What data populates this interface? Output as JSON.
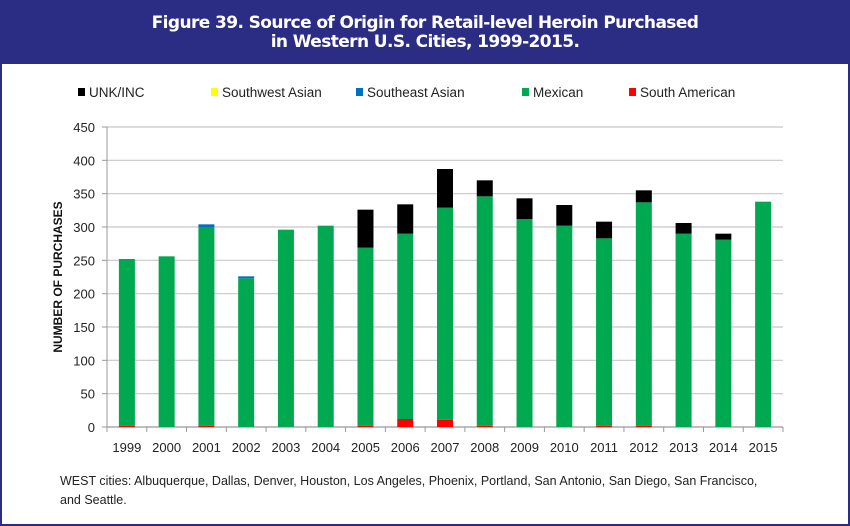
{
  "title_line1": "Figure 39. Source of Origin for Retail-level Heroin Purchased",
  "title_line2": "in Western U.S. Cities, 1999-2015.",
  "note": "WEST cities: Albuquerque, Dallas, Denver, Houston, Los Angeles, Phoenix, Portland, San Antonio, San Diego, San Francisco, and Seattle.",
  "chart_data": {
    "type": "bar",
    "stacked": true,
    "ylabel": "NUMBER OF PURCHASES",
    "xlabel": "",
    "ylim": [
      0,
      450
    ],
    "yticks": [
      0,
      50,
      100,
      150,
      200,
      250,
      300,
      350,
      400,
      450
    ],
    "grid": true,
    "legend_position": "top",
    "categories": [
      "1999",
      "2000",
      "2001",
      "2002",
      "2003",
      "2004",
      "2005",
      "2006",
      "2007",
      "2008",
      "2009",
      "2010",
      "2011",
      "2012",
      "2013",
      "2014",
      "2015"
    ],
    "series": [
      {
        "name": "South American",
        "color": "#ff0000",
        "values": [
          2,
          0,
          2,
          0,
          0,
          0,
          2,
          12,
          11,
          2,
          0,
          0,
          2,
          2,
          0,
          0,
          0
        ]
      },
      {
        "name": "Mexican",
        "color": "#00a94f",
        "values": [
          250,
          256,
          298,
          223,
          296,
          302,
          267,
          278,
          318,
          344,
          312,
          302,
          281,
          335,
          290,
          281,
          338
        ]
      },
      {
        "name": "Southeast Asian",
        "color": "#0070c0",
        "values": [
          0,
          0,
          4,
          3,
          0,
          0,
          0,
          0,
          0,
          0,
          0,
          0,
          0,
          0,
          0,
          0,
          0
        ]
      },
      {
        "name": "Southwest Asian",
        "color": "#ffff00",
        "values": [
          0,
          0,
          0,
          0,
          0,
          0,
          0,
          0,
          0,
          0,
          0,
          0,
          0,
          0,
          0,
          0,
          0
        ]
      },
      {
        "name": "UNK/INC",
        "color": "#000000",
        "values": [
          0,
          0,
          0,
          0,
          0,
          0,
          57,
          44,
          58,
          24,
          31,
          31,
          25,
          18,
          16,
          9,
          0
        ]
      }
    ],
    "legend_order": [
      "UNK/INC",
      "Southwest Asian",
      "Southeast Asian",
      "Mexican",
      "South American"
    ]
  }
}
